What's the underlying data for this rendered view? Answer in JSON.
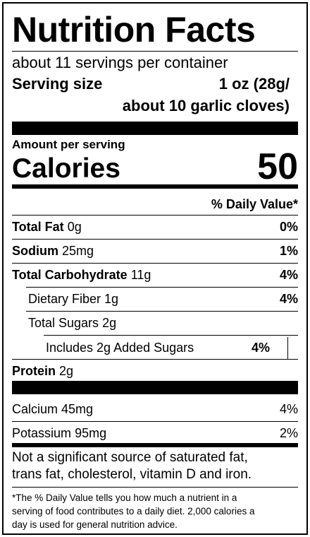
{
  "header": {
    "title": "Nutrition Facts",
    "servings": "about 11 servings per container",
    "serving_size_label": "Serving size",
    "serving_size_value_line1": "1 oz (28g/",
    "serving_size_value_line2": "about 10 garlic cloves)"
  },
  "calories": {
    "amount_per_serving": "Amount per serving",
    "label": "Calories",
    "value": "50"
  },
  "daily_value_header": "% Daily Value*",
  "nutrients": {
    "total_fat": {
      "label": "Total Fat",
      "amount": "0g",
      "dv": "0%"
    },
    "sodium": {
      "label": "Sodium",
      "amount": "25mg",
      "dv": "1%"
    },
    "total_carbohydrate": {
      "label": "Total Carbohydrate",
      "amount": "11g",
      "dv": "4%"
    },
    "dietary_fiber": {
      "label": "Dietary Fiber",
      "amount": "1g",
      "dv": "4%"
    },
    "total_sugars": {
      "label": "Total Sugars",
      "amount": "2g"
    },
    "added_sugars": {
      "label": "Includes 2g Added Sugars",
      "dv": "4%"
    },
    "protein": {
      "label": "Protein",
      "amount": "2g"
    }
  },
  "minerals": {
    "calcium": {
      "label": "Calcium",
      "amount": "45mg",
      "dv": "4%"
    },
    "potassium": {
      "label": "Potassium",
      "amount": "95mg",
      "dv": "2%"
    }
  },
  "not_significant_line1": "Not a significant source of saturated fat,",
  "not_significant_line2": "trans fat, cholesterol, vitamin D and iron.",
  "footnote_line1": "*The % Daily Value tells you how much a nutrient in a",
  "footnote_line2": "serving of food contributes to a daily diet. 2,000 calories a",
  "footnote_line3": "day is used for general nutrition advice."
}
